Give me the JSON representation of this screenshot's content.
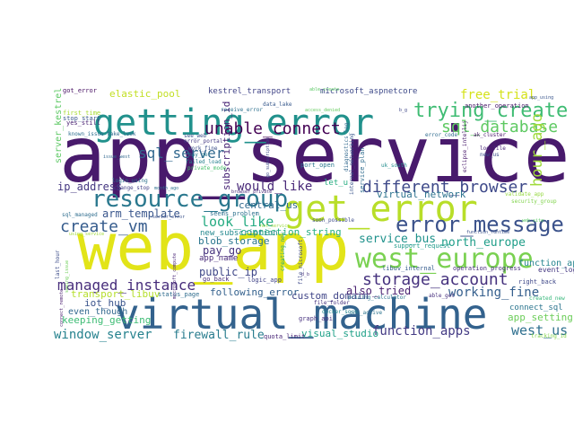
{
  "words": [
    {
      "text": "app_service",
      "color": "#481a6c",
      "rotate": false
    },
    {
      "text": "web_app",
      "color": "#e2e418",
      "rotate": false
    },
    {
      "text": "virtual_machine",
      "color": "#33628d",
      "rotate": false
    },
    {
      "text": "getting_error",
      "color": "#21918c",
      "rotate": false
    },
    {
      "text": "get_error",
      "color": "#b8de29",
      "rotate": false
    },
    {
      "text": "west_europe",
      "color": "#7ad151",
      "rotate": false
    },
    {
      "text": "resource_group",
      "color": "#2a788e",
      "rotate": false
    },
    {
      "text": "error_message",
      "color": "#3b528b",
      "rotate": false
    },
    {
      "text": "trying_create",
      "color": "#3fbc73",
      "rotate": false
    },
    {
      "text": "unable_connect",
      "color": "#440154",
      "rotate": false
    },
    {
      "text": "storage_account",
      "color": "#46327e",
      "rotate": false
    },
    {
      "text": "sql_database",
      "color": "#5ec962",
      "rotate": false
    },
    {
      "text": "create_vm",
      "color": "#365c8d",
      "rotate": false
    },
    {
      "text": "sql_server",
      "color": "#31688e",
      "rotate": false
    },
    {
      "text": "different_browser",
      "color": "#3e4989",
      "rotate": false
    },
    {
      "text": "managed_instance",
      "color": "#472d7b",
      "rotate": false
    },
    {
      "text": "virtual_network",
      "color": "#2c728e",
      "rotate": false
    },
    {
      "text": "function_apps",
      "color": "#443b84",
      "rotate": false
    },
    {
      "text": "window_server",
      "color": "#26828e",
      "rotate": false
    },
    {
      "text": "north_europe",
      "color": "#1f9e89",
      "rotate": false
    },
    {
      "text": "look_like",
      "color": "#25ab82",
      "rotate": false
    },
    {
      "text": "would_like",
      "color": "#482878",
      "rotate": false
    },
    {
      "text": "hour_ago",
      "color": "#9fda3a",
      "rotate": true
    },
    {
      "text": "working_fine",
      "color": "#355f8d",
      "rotate": false
    },
    {
      "text": "free_trial",
      "color": "#d5e21a",
      "rotate": false
    },
    {
      "text": "service_bus",
      "color": "#20928c",
      "rotate": false
    },
    {
      "text": "firewall_rule",
      "color": "#287c8e",
      "rotate": false
    },
    {
      "text": "west_us",
      "color": "#2e6f8e",
      "rotate": false
    },
    {
      "text": "arm_template",
      "color": "#39568c",
      "rotate": false
    },
    {
      "text": "subscription_id",
      "color": "#482475",
      "rotate": true
    },
    {
      "text": "connection_string",
      "color": "#27ad81",
      "rotate": false
    },
    {
      "text": "keeping_getting",
      "color": "#3dbc74",
      "rotate": false
    },
    {
      "text": "visual_studio",
      "color": "#1fa188",
      "rotate": false
    },
    {
      "text": "pay_go",
      "color": "#46337e",
      "rotate": false
    },
    {
      "text": "elastic_pool",
      "color": "#c2df23",
      "rotate": false
    },
    {
      "text": "public_ip",
      "color": "#3f4788",
      "rotate": false
    },
    {
      "text": "ip_address",
      "color": "#453781",
      "rotate": false
    },
    {
      "text": "also_tried",
      "color": "#481f70",
      "rotate": false
    },
    {
      "text": "transport_libuv",
      "color": "#b5de2b",
      "rotate": false
    },
    {
      "text": "blob_storage",
      "color": "#2a768e",
      "rotate": false
    },
    {
      "text": "following_error",
      "color": "#34618d",
      "rotate": false
    },
    {
      "text": "custom_domain",
      "color": "#404588",
      "rotate": false
    },
    {
      "text": "function_app",
      "color": "#25848e",
      "rotate": false
    },
    {
      "text": "app_setting",
      "color": "#6ccd5a",
      "rotate": false
    },
    {
      "text": "connect_sql",
      "color": "#2b758e",
      "rotate": false
    },
    {
      "text": "central_us",
      "color": "#30698e",
      "rotate": false
    },
    {
      "text": "iot_hub",
      "color": "#3a548c",
      "rotate": false
    },
    {
      "text": "even_though",
      "color": "#31678e",
      "rotate": false
    },
    {
      "text": "new_subscription",
      "color": "#23888e",
      "rotate": false
    },
    {
      "text": "kestrel_transport",
      "color": "#414487",
      "rotate": false
    },
    {
      "text": "microsoft_aspnetcore",
      "color": "#3e4a89",
      "rotate": false
    },
    {
      "text": "server_kestrel",
      "color": "#5cc863",
      "rotate": true
    },
    {
      "text": "app_name",
      "color": "#482979",
      "rotate": false
    },
    {
      "text": "seems_problem",
      "color": "#2d718e",
      "rotate": false
    },
    {
      "text": "event_log",
      "color": "#453882",
      "rotate": false
    },
    {
      "text": "right_back",
      "color": "#3f4889",
      "rotate": false
    },
    {
      "text": "operation_progress",
      "color": "#472e7c",
      "rotate": false
    },
    {
      "text": "libuv_internal",
      "color": "#365d8d",
      "rotate": false
    },
    {
      "text": "logic_app",
      "color": "#404387",
      "rotate": false
    },
    {
      "text": "go_back",
      "color": "#472c7a",
      "rotate": false
    },
    {
      "text": "status_page",
      "color": "#2f6c8e",
      "rotate": false
    },
    {
      "text": "support_request",
      "color": "#1e9b8a",
      "rotate": false
    },
    {
      "text": "file_folder",
      "color": "#46317e",
      "rotate": false
    },
    {
      "text": "graph_api",
      "color": "#46307e",
      "rotate": false
    },
    {
      "text": "quota_limit",
      "color": "#482576",
      "rotate": false
    },
    {
      "text": "docker_sock",
      "color": "#24868e",
      "rotate": false
    },
    {
      "text": "pricing_calculator",
      "color": "#2c738e",
      "rotate": false
    },
    {
      "text": "one_active",
      "color": "#2b748e",
      "rotate": false
    },
    {
      "text": "able_get",
      "color": "#472f7d",
      "rotate": false
    },
    {
      "text": "created_new",
      "color": "#35b779",
      "rotate": false
    },
    {
      "text": "tracking_id",
      "color": "#84d44b",
      "rotate": false
    },
    {
      "text": "got_error",
      "color": "#471063",
      "rotate": false
    },
    {
      "text": "first_time",
      "color": "#a8db34",
      "rotate": false
    },
    {
      "text": "stop_start",
      "color": "#39568c",
      "rotate": false
    },
    {
      "text": "yes_still",
      "color": "#482071",
      "rotate": false
    },
    {
      "text": "known_issue",
      "color": "#2e6e8e",
      "rotate": false
    },
    {
      "text": "take_look",
      "color": "#31688e",
      "rotate": false
    },
    {
      "text": "see_web",
      "color": "#3b518b",
      "rotate": false
    },
    {
      "text": "receive_error",
      "color": "#2d708e",
      "rotate": false
    },
    {
      "text": "data_lake",
      "color": "#38598c",
      "rotate": false
    },
    {
      "text": "error_portal",
      "color": "#443983",
      "rotate": false
    },
    {
      "text": "work_fine",
      "color": "#3c4f8a",
      "rotate": false
    },
    {
      "text": "may_get",
      "color": "#297a8e",
      "rotate": false
    },
    {
      "text": "failed_load",
      "color": "#26818e",
      "rotate": false
    },
    {
      "text": "private_mode",
      "color": "#4ac16d",
      "rotate": false
    },
    {
      "text": "port_open",
      "color": "#2a778e",
      "rotate": false
    },
    {
      "text": "uk_south",
      "color": "#228d8d",
      "rotate": false
    },
    {
      "text": "log_file",
      "color": "#482677",
      "rotate": false
    },
    {
      "text": "new_us",
      "color": "#3c4f8a",
      "rotate": false
    },
    {
      "text": "ak_cluster",
      "color": "#481467",
      "rotate": false
    },
    {
      "text": "error_code",
      "color": "#2f6b8e",
      "rotate": false
    },
    {
      "text": "another_operation",
      "color": "#481769",
      "rotate": false
    },
    {
      "text": "app_using",
      "color": "#39558c",
      "rotate": false
    },
    {
      "text": "access_denied",
      "color": "#65cb5e",
      "rotate": false
    },
    {
      "text": "able_create",
      "color": "#5ac864",
      "rotate": false
    },
    {
      "text": "validate_app",
      "color": "#95d840",
      "rotate": false
    },
    {
      "text": "security_group",
      "color": "#81d34d",
      "rotate": false
    },
    {
      "text": "web_site",
      "color": "#58c765",
      "rotate": false
    },
    {
      "text": "login_using",
      "color": "#2c718e",
      "rotate": false
    },
    {
      "text": "issue_west",
      "color": "#31678e",
      "rotate": false
    },
    {
      "text": "change_stop",
      "color": "#424086",
      "rotate": false
    },
    {
      "text": "month_ago",
      "color": "#2d708e",
      "rotate": false
    },
    {
      "text": "browser_private",
      "color": "#482878",
      "rotate": false
    },
    {
      "text": "server_error",
      "color": "#3b528b",
      "rotate": false
    },
    {
      "text": "soon_possible",
      "color": "#3e4c8a",
      "rotate": false
    },
    {
      "text": "sql_managed",
      "color": "#2e6d8e",
      "rotate": false
    },
    {
      "text": "using_service",
      "color": "#a0da39",
      "rotate": false
    },
    {
      "text": "last_hour",
      "color": "#3d4d8a",
      "rotate": true
    },
    {
      "text": "seeing_issue",
      "color": "#6ece58",
      "rotate": true
    },
    {
      "text": "connect_remote",
      "color": "#481c6e",
      "rotate": true
    },
    {
      "text": "microsoft_compute",
      "color": "#482475",
      "rotate": true
    },
    {
      "text": "file_microsoft",
      "color": "#3e4a89",
      "rotate": true
    },
    {
      "text": "creating_new",
      "color": "#20a386",
      "rotate": true
    },
    {
      "text": "let_u",
      "color": "#27ad81",
      "rotate": false
    },
    {
      "text": "function_runtime",
      "color": "#3b528b",
      "rotate": false
    },
    {
      "text": "b_g",
      "color": "#3f4788",
      "rotate": false
    },
    {
      "text": "d_b",
      "color": "#46337e",
      "rotate": false
    },
    {
      "text": "internal_networking",
      "color": "#39568c",
      "rotate": true
    },
    {
      "text": "diagnostics_log",
      "color": "#31688e",
      "rotate": true
    },
    {
      "text": "eclipse_intellij",
      "color": "#48196b",
      "rotate": true
    },
    {
      "text": "go_subscription",
      "color": "#3e4989",
      "rotate": true
    },
    {
      "text": "service_plan",
      "color": "#2f6c8e",
      "rotate": true
    },
    {
      "text": "not_service",
      "color": "#9bd93c",
      "rotate": false
    }
  ]
}
